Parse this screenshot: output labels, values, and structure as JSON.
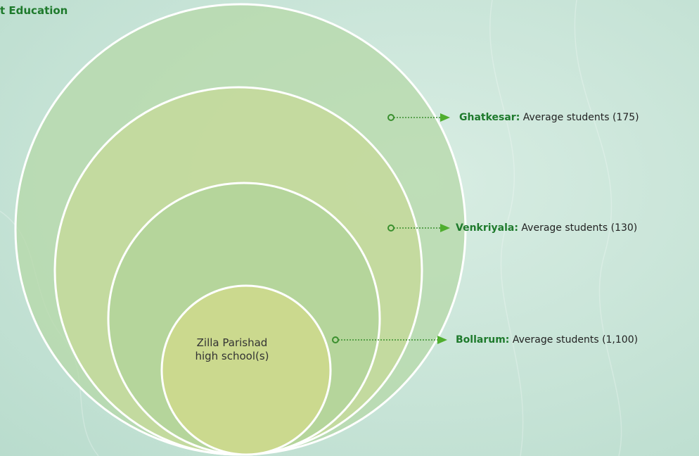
{
  "header": {
    "title": "t Education"
  },
  "center": {
    "label": "Zilla Parishad high school(s)"
  },
  "rings": [
    {
      "name": "Ghatkesar:",
      "text": "Average students (175)"
    },
    {
      "name": "Venkriyala:",
      "text": "Average students (130)"
    },
    {
      "name": "Bollarum:",
      "text": "Average students (1,100)"
    }
  ]
}
